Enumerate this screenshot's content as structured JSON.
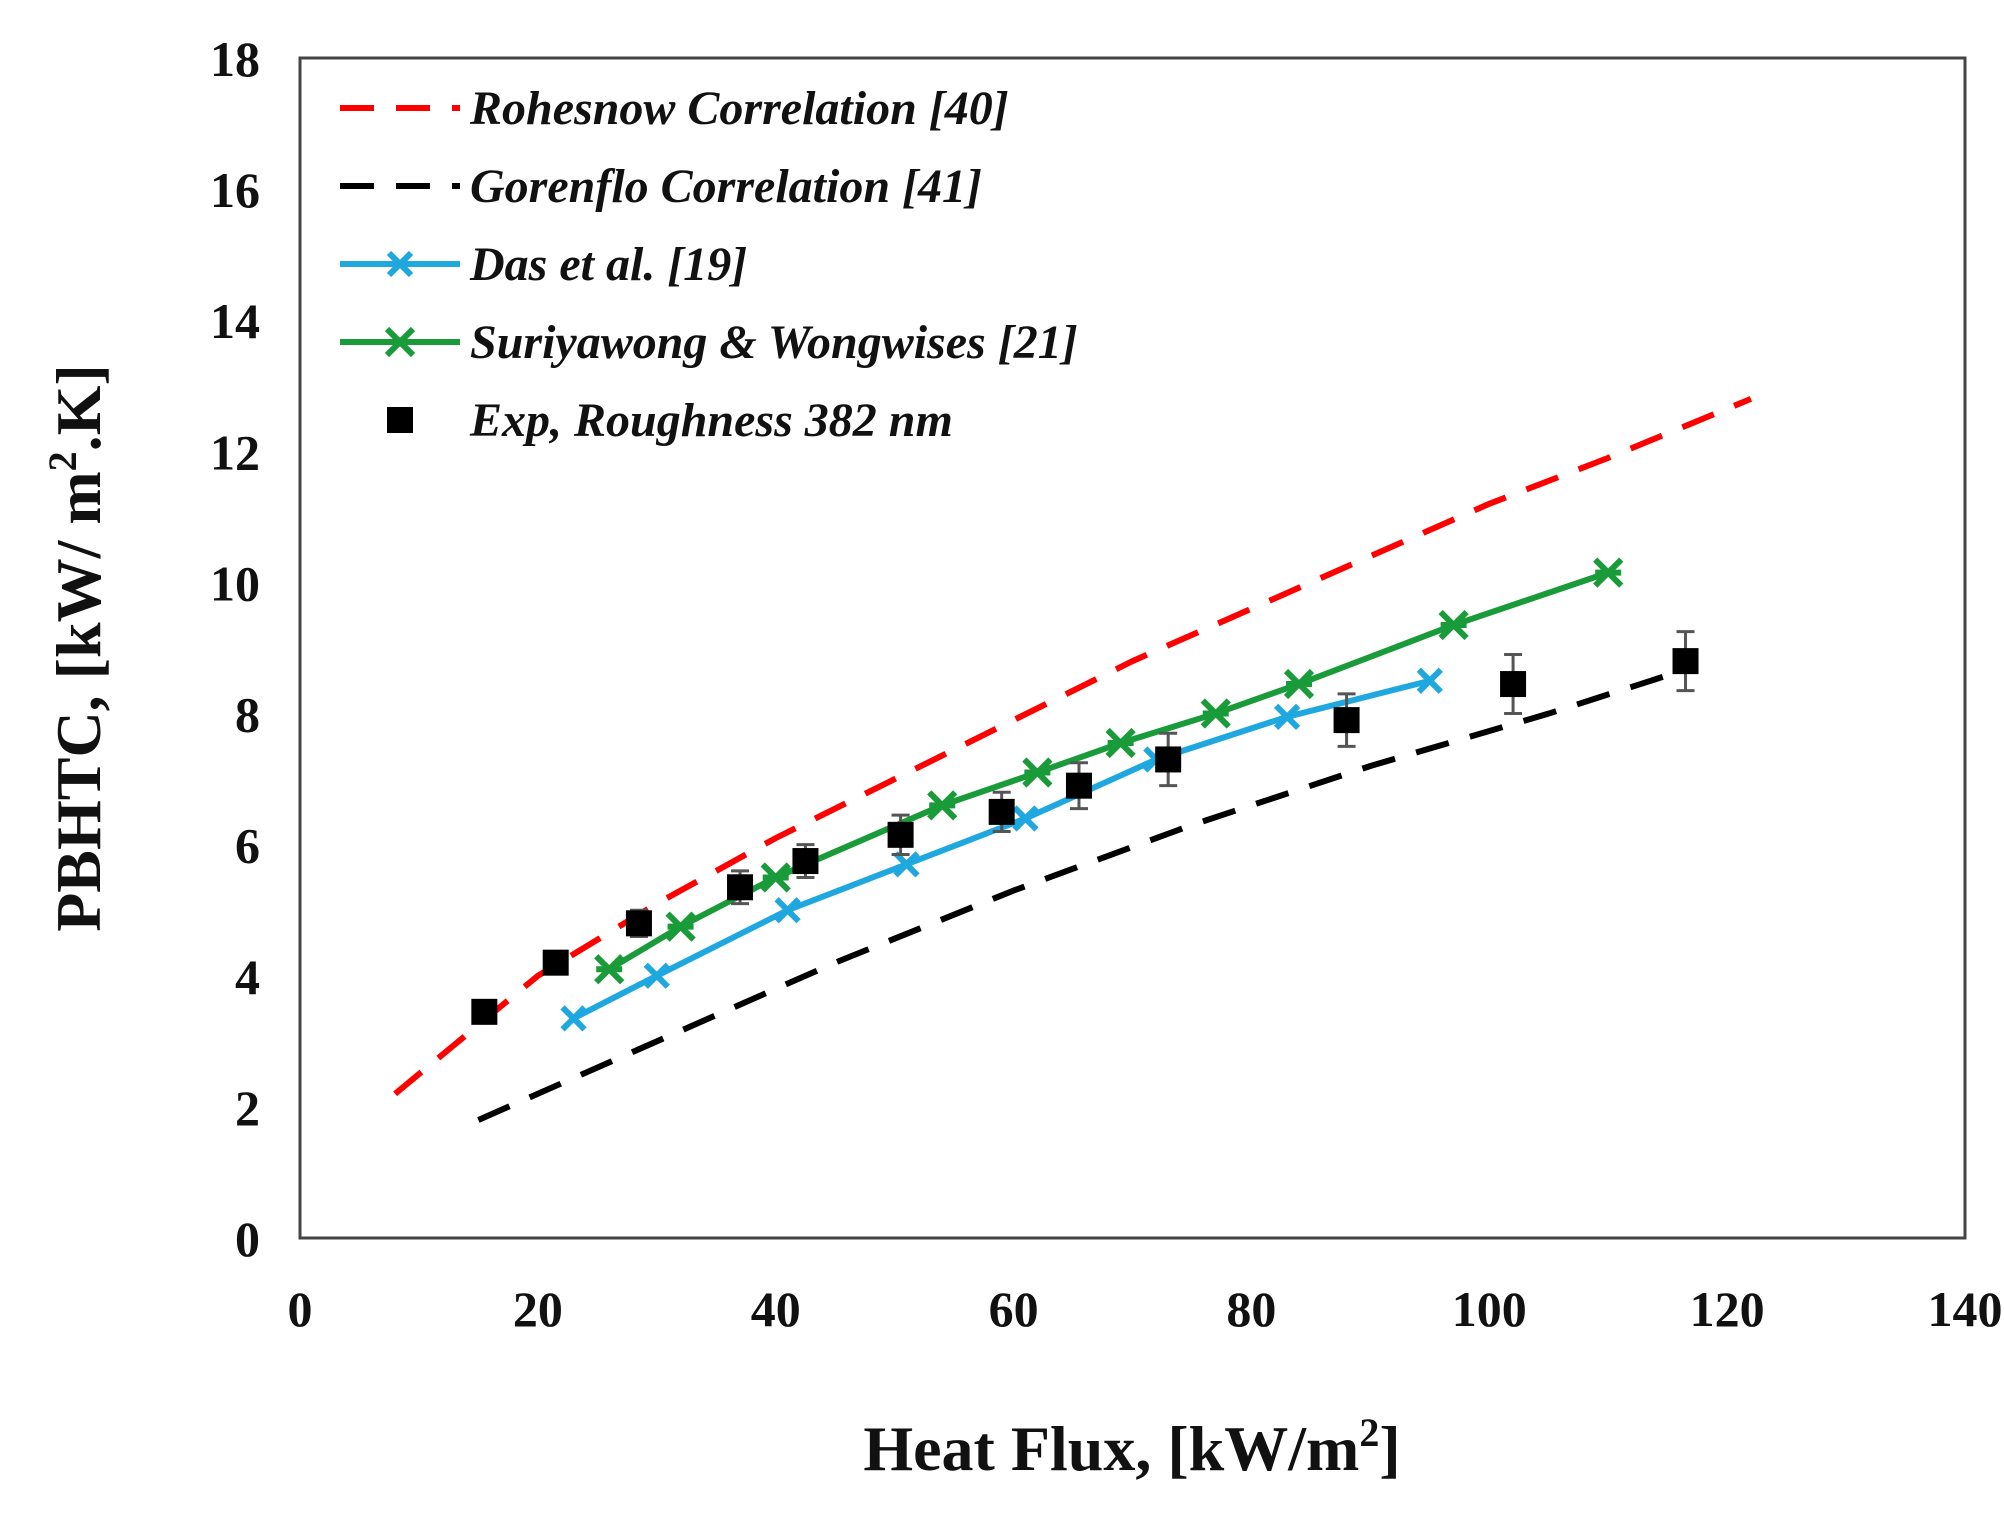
{
  "chart_data": {
    "type": "line",
    "xlabel": "Heat Flux, [kW/m",
    "xlabel_sup": "2",
    "xlabel_end": "]",
    "ylabel": "PBHTC, [kW/ m",
    "ylabel_sup": "2",
    "ylabel_end": ".K]",
    "xlim": [
      0,
      140
    ],
    "ylim": [
      0,
      18
    ],
    "xticks": [
      "0",
      "20",
      "40",
      "60",
      "80",
      "100",
      "120",
      "140"
    ],
    "yticks": [
      "0",
      "2",
      "4",
      "6",
      "8",
      "10",
      "12",
      "14",
      "16",
      "18"
    ],
    "grid": false,
    "legend_position": "top-left",
    "series": [
      {
        "name": "Rohesnow Correlation [40]",
        "style": "dashed",
        "marker": "none",
        "color": "#ff0000",
        "x": [
          8,
          20,
          30,
          40,
          50,
          60,
          70,
          80,
          90,
          100,
          110,
          122
        ],
        "y": [
          2.2,
          4.0,
          5.1,
          6.1,
          7.0,
          7.9,
          8.8,
          9.6,
          10.4,
          11.2,
          11.9,
          12.8
        ]
      },
      {
        "name": "Gorenflo Correlation [41]",
        "style": "dashed",
        "marker": "none",
        "color": "#000000",
        "x": [
          15,
          30,
          45,
          60,
          75,
          90,
          105,
          117
        ],
        "y": [
          1.8,
          3.0,
          4.2,
          5.3,
          6.3,
          7.2,
          8.0,
          8.7
        ]
      },
      {
        "name": "Das et al. [19]",
        "style": "solid",
        "marker": "x",
        "color": "#1fa7e0",
        "x": [
          23,
          30,
          41,
          51,
          61,
          72,
          83,
          95
        ],
        "y": [
          3.35,
          4.0,
          5.0,
          5.7,
          6.4,
          7.3,
          7.95,
          8.5
        ]
      },
      {
        "name": "Suriyawong & Wongwises [21]",
        "style": "solid",
        "marker": "star",
        "color": "#1a9b3a",
        "x": [
          26,
          32,
          40,
          54,
          62,
          69,
          77,
          84,
          97,
          110
        ],
        "y": [
          4.1,
          4.75,
          5.5,
          6.6,
          7.1,
          7.55,
          8.0,
          8.45,
          9.35,
          10.15
        ]
      },
      {
        "name": "Exp, Roughness 382 nm",
        "style": "none",
        "marker": "square",
        "color": "#000000",
        "x": [
          15.5,
          21.5,
          28.5,
          37,
          42.5,
          50.5,
          59,
          65.5,
          73,
          88,
          102,
          116.5
        ],
        "y": [
          3.45,
          4.2,
          4.8,
          5.35,
          5.75,
          6.15,
          6.5,
          6.9,
          7.3,
          7.9,
          8.45,
          8.8
        ],
        "error": [
          0.15,
          0.15,
          0.2,
          0.25,
          0.25,
          0.3,
          0.3,
          0.35,
          0.4,
          0.4,
          0.45,
          0.45
        ]
      }
    ]
  }
}
